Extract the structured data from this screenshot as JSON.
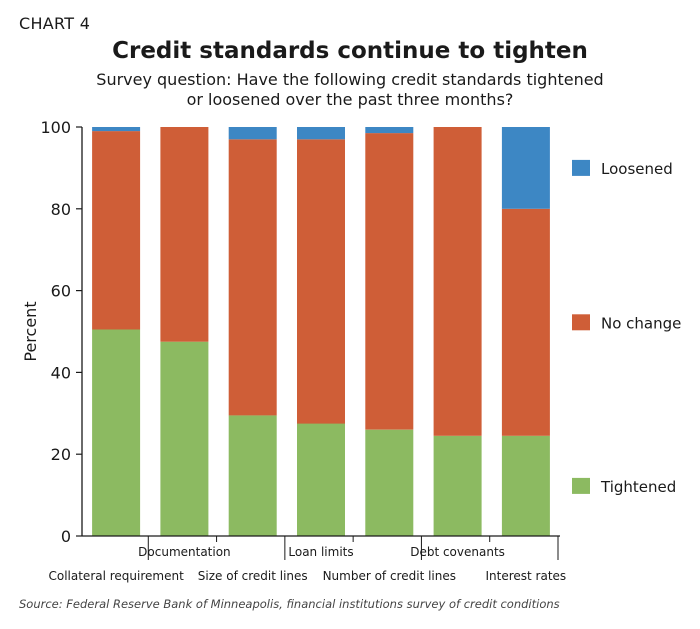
{
  "header": {
    "chart_number": "CHART 4",
    "title": "Credit standards continue to tighten",
    "subtitle_line1": "Survey question: Have the following credit standards tightened",
    "subtitle_line2": "or loosened over the past three months?"
  },
  "footer": {
    "source": "Source: Federal Reserve Bank of Minneapolis, financial institutions survey of credit conditions"
  },
  "colors": {
    "tightened": "#8cba61",
    "no_change": "#cf5e37",
    "loosened": "#3d87c4"
  },
  "chart_data": {
    "type": "bar",
    "stacked": true,
    "title": "Credit standards continue to tighten",
    "ylabel": "Percent",
    "ylim": [
      0,
      100
    ],
    "yticks": [
      0,
      20,
      40,
      60,
      80,
      100
    ],
    "grid": false,
    "legend_position": "right",
    "categories": [
      "Collateral requirement",
      "Documentation",
      "Size of credit lines",
      "Loan limits",
      "Number of credit lines",
      "Debt covenants",
      "Interest rates"
    ],
    "series": [
      {
        "name": "Tightened",
        "values": [
          50.5,
          47.5,
          29.5,
          27.5,
          26,
          24.5,
          24.5
        ]
      },
      {
        "name": "No change",
        "values": [
          48.5,
          52.5,
          67.5,
          69.5,
          72.5,
          75.5,
          55.5
        ]
      },
      {
        "name": "Loosened",
        "values": [
          1,
          0,
          3,
          3,
          1.5,
          0,
          20
        ]
      }
    ]
  }
}
